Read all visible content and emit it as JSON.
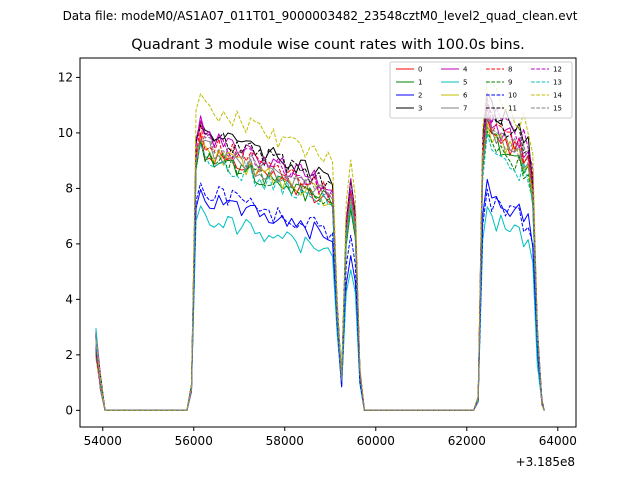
{
  "chart_data": {
    "type": "line",
    "suptitle": "Data file: modeM0/AS1A07_011T01_9000003482_23548cztM0_level2_quad_clean.evt",
    "title": "Quadrant 3 module wise count rates with 100.0s bins.",
    "xlabel": "",
    "ylabel": "",
    "x_offset_label": "+3.185e8",
    "xlim": [
      53500,
      64400
    ],
    "ylim": [
      -0.6,
      12.7
    ],
    "xticks": [
      54000,
      56000,
      58000,
      60000,
      62000,
      64000
    ],
    "xtick_labels": [
      "54000",
      "56000",
      "58000",
      "60000",
      "62000",
      "64000"
    ],
    "yticks": [
      0,
      2,
      4,
      6,
      8,
      10,
      12
    ],
    "ytick_labels": [
      "0",
      "2",
      "4",
      "6",
      "8",
      "10",
      "12"
    ],
    "grid": false,
    "legend_position": "top-right",
    "bin_width": 100,
    "segments": [
      {
        "start": 53850,
        "end": 54050
      },
      {
        "start": 54050,
        "end": 55850
      },
      {
        "start": 55950,
        "end": 59050
      },
      {
        "start": 59050,
        "end": 59350
      },
      {
        "start": 59350,
        "end": 59650
      },
      {
        "start": 59650,
        "end": 62150
      },
      {
        "start": 62150,
        "end": 63750
      }
    ],
    "series": [
      {
        "name": "0",
        "color": "#ff0000",
        "dashed": false,
        "plateau": 7.9,
        "end_level": 7.7,
        "peak2": 10.6,
        "midpeak": 7.8
      },
      {
        "name": "1",
        "color": "#008000",
        "dashed": false,
        "plateau": 7.8,
        "end_level": 7.5,
        "peak2": 10.2,
        "midpeak": 7.4
      },
      {
        "name": "2",
        "color": "#0000ff",
        "dashed": false,
        "plateau": 6.5,
        "end_level": 5.8,
        "peak2": 8.2,
        "midpeak": 5.6
      },
      {
        "name": "3",
        "color": "#000000",
        "dashed": false,
        "plateau": 8.6,
        "end_level": 8.3,
        "peak2": 11.5,
        "midpeak": 8.2
      },
      {
        "name": "4",
        "color": "#bf00bf",
        "dashed": false,
        "plateau": 8.4,
        "end_level": 8.3,
        "peak2": 10.9,
        "midpeak": 8.0
      },
      {
        "name": "5",
        "color": "#00bfbf",
        "dashed": false,
        "plateau": 5.9,
        "end_level": 5.1,
        "peak2": 7.2,
        "midpeak": 5.0
      },
      {
        "name": "6",
        "color": "#bfbf00",
        "dashed": false,
        "plateau": 7.9,
        "end_level": 7.6,
        "peak2": 10.4,
        "midpeak": 7.6
      },
      {
        "name": "7",
        "color": "#808080",
        "dashed": false,
        "plateau": 8.0,
        "end_level": 7.8,
        "peak2": 10.5,
        "midpeak": 7.7
      },
      {
        "name": "8",
        "color": "#ff0000",
        "dashed": true,
        "plateau": 8.2,
        "end_level": 8.0,
        "peak2": 10.8,
        "midpeak": 8.0
      },
      {
        "name": "9",
        "color": "#008000",
        "dashed": true,
        "plateau": 7.8,
        "end_level": 7.4,
        "peak2": 10.1,
        "midpeak": 7.3
      },
      {
        "name": "10",
        "color": "#0000ff",
        "dashed": true,
        "plateau": 6.7,
        "end_level": 6.2,
        "peak2": 7.9,
        "midpeak": 6.2
      },
      {
        "name": "11",
        "color": "#000000",
        "dashed": true,
        "plateau": 8.5,
        "end_level": 8.4,
        "peak2": 11.2,
        "midpeak": 8.4
      },
      {
        "name": "12",
        "color": "#bf00bf",
        "dashed": true,
        "plateau": 8.3,
        "end_level": 8.5,
        "peak2": 11.3,
        "midpeak": 8.3
      },
      {
        "name": "13",
        "color": "#00bfbf",
        "dashed": true,
        "plateau": 7.7,
        "end_level": 7.6,
        "peak2": 9.9,
        "midpeak": 7.5
      },
      {
        "name": "14",
        "color": "#bfbf00",
        "dashed": true,
        "plateau": 9.3,
        "end_level": 9.1,
        "peak2": 12.0,
        "midpeak": 9.0
      },
      {
        "name": "15",
        "color": "#808080",
        "dashed": true,
        "plateau": 8.1,
        "end_level": 8.0,
        "peak2": 10.7,
        "midpeak": 7.9
      }
    ]
  }
}
